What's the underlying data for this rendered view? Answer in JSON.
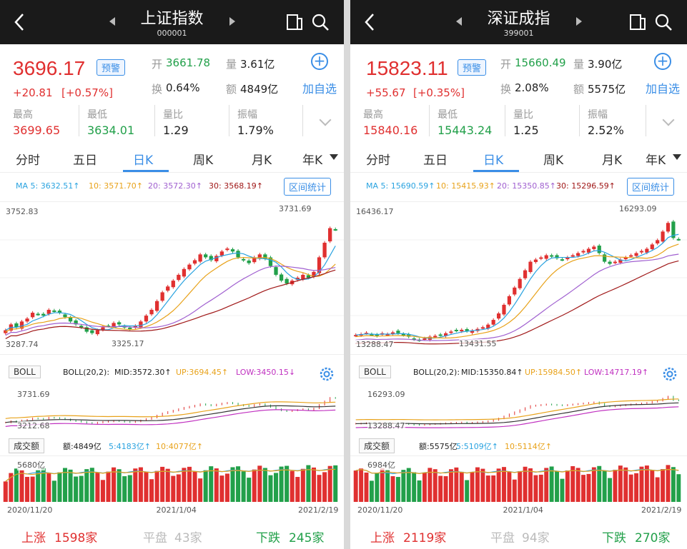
{
  "panels": [
    {
      "title": "上证指数",
      "code": "000001",
      "price": "3696.17",
      "warn": "预警",
      "change": "+20.81",
      "change_pct": "[+0.57%]",
      "open_label": "开",
      "open": "3661.78",
      "vol_label": "量",
      "vol": "3.61亿",
      "turn_label": "换",
      "turn": "0.64%",
      "amt_label": "额",
      "amt": "4849亿",
      "add": "加自选",
      "high_label": "最高",
      "high": "3699.65",
      "low_label": "最低",
      "low": "3634.01",
      "qr_label": "量比",
      "qr": "1.29",
      "amp_label": "振幅",
      "amp": "1.79%",
      "tabs": [
        "分时",
        "五日",
        "日K",
        "周K",
        "月K",
        "年K"
      ],
      "ma5": "MA 5: 3632.51↑",
      "ma10": "10: 3571.70↑",
      "ma20": "20: 3572.30↑",
      "ma30": "30: 3568.19↑",
      "range_btn": "区间统计",
      "kmax_label": "3752.83",
      "kmin_label": "3287.74",
      "kpeak": "3731.69",
      "ktrough": "3325.17",
      "boll_btn": "BOLL",
      "boll_name": "BOLL(20,2):",
      "boll_mid": "MID:3572.30↑",
      "boll_up": "UP:3694.45↑",
      "boll_low": "LOW:3450.15↓",
      "boll_max": "3731.69",
      "boll_min": "3212.68",
      "vol_btn": "成交额",
      "vol_amt": "额:4849亿",
      "vol_ma5": "5:4183亿↑",
      "vol_ma10": "10:4077亿↑",
      "vol_max": "5680亿",
      "date_start": "2020/11/20",
      "date_mid": "2021/1/04",
      "date_end": "2021/2/19",
      "up_label": "上涨",
      "up_count": "1598家",
      "flat_label": "平盘",
      "flat_count": "43家",
      "down_label": "下跌",
      "down_count": "245家",
      "chart_data": {
        "type": "candlestick",
        "y_range": [
          3287.74,
          3752.83
        ],
        "high_point": 3731.69,
        "low_point": 3325.17,
        "closes": [
          3350,
          3370,
          3360,
          3380,
          3390,
          3410,
          3405,
          3400,
          3420,
          3415,
          3410,
          3395,
          3380,
          3370,
          3360,
          3345,
          3340,
          3350,
          3360,
          3365,
          3375,
          3370,
          3360,
          3355,
          3365,
          3380,
          3400,
          3420,
          3450,
          3480,
          3500,
          3520,
          3540,
          3560,
          3575,
          3590,
          3610,
          3600,
          3590,
          3605,
          3620,
          3630,
          3620,
          3600,
          3590,
          3580,
          3600,
          3610,
          3595,
          3570,
          3540,
          3520,
          3510,
          3520,
          3530,
          3540,
          3530,
          3550,
          3600,
          3650,
          3700,
          3696
        ]
      }
    },
    {
      "title": "深证成指",
      "code": "399001",
      "price": "15823.11",
      "warn": "预警",
      "change": "+55.67",
      "change_pct": "[+0.35%]",
      "open_label": "开",
      "open": "15660.49",
      "vol_label": "量",
      "vol": "3.90亿",
      "turn_label": "换",
      "turn": "2.08%",
      "amt_label": "额",
      "amt": "5575亿",
      "add": "加自选",
      "high_label": "最高",
      "high": "15840.16",
      "low_label": "最低",
      "low": "15443.24",
      "qr_label": "量比",
      "qr": "1.25",
      "amp_label": "振幅",
      "amp": "2.52%",
      "tabs": [
        "分时",
        "五日",
        "日K",
        "周K",
        "月K",
        "年K"
      ],
      "ma5": "MA 5: 15690.59↑",
      "ma10": "10: 15415.93↑",
      "ma20": "20: 15350.85↑",
      "ma30": "30: 15296.59↑",
      "range_btn": "区间统计",
      "kmax_label": "16436.17",
      "kmin_label": "13288.47",
      "kpeak": "16293.09",
      "ktrough": "13431.55",
      "boll_btn": "BOLL",
      "boll_name": "BOLL(20,2):",
      "boll_mid": "MID:15350.84↑",
      "boll_up": "UP:15984.50↑",
      "boll_low": "LOW:14717.19↑",
      "boll_max": "16293.09",
      "boll_min": "13288.47",
      "vol_btn": "成交额",
      "vol_amt": "额:5575亿",
      "vol_ma5": "5:5109亿↑",
      "vol_ma10": "10:5114亿↑",
      "vol_max": "6984亿",
      "date_start": "2020/11/20",
      "date_mid": "2021/1/04",
      "date_end": "2021/2/19",
      "up_label": "上涨",
      "up_count": "2119家",
      "flat_label": "平盘",
      "flat_count": "94家",
      "down_label": "下跌",
      "down_count": "270家",
      "chart_data": {
        "type": "candlestick",
        "y_range": [
          13288.47,
          16436.17
        ],
        "high_point": 16293.09,
        "low_point": 13431.55,
        "closes": [
          13600,
          13620,
          13650,
          13610,
          13580,
          13640,
          13620,
          13660,
          13640,
          13600,
          13560,
          13500,
          13480,
          13520,
          13560,
          13580,
          13600,
          13640,
          13680,
          13700,
          13720,
          13690,
          13700,
          13740,
          13780,
          13840,
          13950,
          14100,
          14300,
          14500,
          14700,
          14900,
          15100,
          15300,
          15350,
          15400,
          15450,
          15420,
          15380,
          15350,
          15400,
          15450,
          15500,
          15550,
          15600,
          15650,
          15500,
          15300,
          15250,
          15300,
          15350,
          15400,
          15450,
          15500,
          15550,
          15600,
          15700,
          15800,
          16000,
          16200,
          15850,
          15823
        ]
      }
    }
  ]
}
